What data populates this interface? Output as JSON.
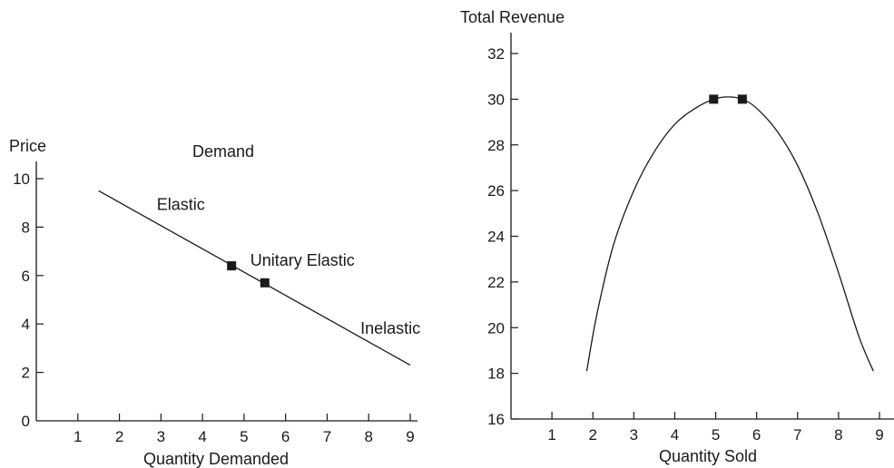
{
  "chart_data": [
    {
      "type": "line",
      "title": "Demand",
      "xlabel": "Quantity Demanded",
      "ylabel": "Price",
      "xlim": [
        0,
        9
      ],
      "ylim": [
        0,
        10
      ],
      "xticks": [
        1,
        2,
        3,
        4,
        5,
        6,
        7,
        8,
        9
      ],
      "yticks": [
        0,
        2,
        4,
        6,
        8,
        10
      ],
      "grid": false,
      "series": [
        {
          "x": [
            1.5,
            9
          ],
          "y": [
            9.5,
            2.3
          ]
        }
      ],
      "markers": [
        {
          "x": 4.7,
          "y": 6.4
        },
        {
          "x": 5.5,
          "y": 5.7
        }
      ],
      "annotations": [
        {
          "text": "Elastic",
          "x": 2.9,
          "y": 8.7
        },
        {
          "text": "Unitary Elastic",
          "x": 5.15,
          "y": 6.4
        },
        {
          "text": "Inelastic",
          "x": 7.8,
          "y": 3.6
        }
      ]
    },
    {
      "type": "line",
      "title": "",
      "xlabel": "Quantity Sold",
      "ylabel": "Total Revenue",
      "xlim": [
        0,
        9
      ],
      "ylim": [
        16,
        33
      ],
      "xticks": [
        1,
        2,
        3,
        4,
        5,
        6,
        7,
        8,
        9
      ],
      "yticks": [
        16,
        18,
        20,
        22,
        24,
        26,
        28,
        30,
        32
      ],
      "grid": false,
      "series": [
        {
          "x": [
            1.85,
            2.1,
            2.5,
            3.0,
            3.5,
            4.0,
            4.5,
            4.95,
            5.3,
            5.65,
            6.0,
            6.5,
            7.0,
            7.5,
            8.0,
            8.5,
            8.85
          ],
          "y": [
            18.1,
            20.6,
            23.6,
            26.0,
            27.7,
            28.9,
            29.6,
            30.0,
            30.1,
            30.0,
            29.6,
            28.6,
            27.1,
            25.0,
            22.4,
            19.6,
            18.1
          ]
        }
      ],
      "markers": [
        {
          "x": 4.95,
          "y": 30
        },
        {
          "x": 5.65,
          "y": 30
        }
      ]
    }
  ]
}
